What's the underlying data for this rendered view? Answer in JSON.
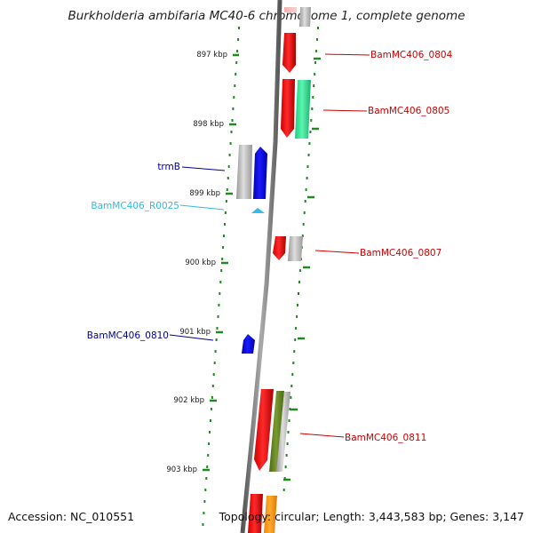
{
  "title": "Burkholderia ambifaria MC40-6 chromosome 1, complete genome",
  "footer": {
    "accession": "Accession: NC_010551",
    "stats": "Topology: circular; Length: 3,443,583 bp; Genes: 3,147"
  },
  "ticks": [
    {
      "label": "897 kbp",
      "kb": 897
    },
    {
      "label": "898 kbp",
      "kb": 898
    },
    {
      "label": "899 kbp",
      "kb": 899
    },
    {
      "label": "900 kbp",
      "kb": 900
    },
    {
      "label": "901 kbp",
      "kb": 901
    },
    {
      "label": "902 kbp",
      "kb": 902
    },
    {
      "label": "903 kbp",
      "kb": 903
    }
  ],
  "gene_labels": [
    {
      "name": "BamMC406_0804",
      "side": "right",
      "color": "#cc0000"
    },
    {
      "name": "BamMC406_0805",
      "side": "right",
      "color": "#cc0000"
    },
    {
      "name": "trmB",
      "side": "left",
      "color": "#000099"
    },
    {
      "name": "BamMC406_R0025",
      "side": "left",
      "color": "#33bbdd"
    },
    {
      "name": "BamMC406_0807",
      "side": "right",
      "color": "#cc0000"
    },
    {
      "name": "BamMC406_0810",
      "side": "left",
      "color": "#000099"
    },
    {
      "name": "BamMC406_0811",
      "side": "right",
      "color": "#cc0000"
    }
  ],
  "colors": {
    "backbone": "#888888",
    "tick": "#228822",
    "forward_cds": "#ff0000",
    "reverse_cds": "#0000ee",
    "rna": "#33bbee",
    "green_feature": "#33ee99",
    "olive_feature": "#668822",
    "orange_feature": "#ff9900",
    "grey_feature": "#aaaaaa"
  }
}
